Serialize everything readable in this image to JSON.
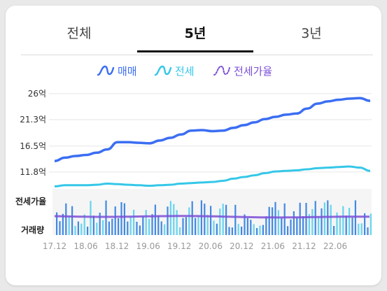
{
  "tabs": [
    {
      "label": "전체",
      "active": false
    },
    {
      "label": "5년",
      "active": true
    },
    {
      "label": "3년",
      "active": false
    }
  ],
  "legend": [
    {
      "label": "매매",
      "color": "#3b6ef2",
      "icon": "wave-icon"
    },
    {
      "label": "전세",
      "color": "#35c7e8",
      "icon": "wave-icon"
    },
    {
      "label": "전세가율",
      "color": "#7b4fd6",
      "icon": "dotted-wave-icon"
    }
  ],
  "lower_labels": {
    "jeonse_rate": "전세가율",
    "volume": "거래량"
  },
  "chart_data": {
    "type": "line",
    "title": "",
    "xlabel": "",
    "ylabel": "",
    "y_unit": "억",
    "ylim": [
      9.0,
      27.0
    ],
    "yticks": [
      "26억",
      "21.3억",
      "16.5억",
      "11.8억"
    ],
    "ytick_values": [
      26,
      21.3,
      16.5,
      11.8
    ],
    "xticks": [
      "17.12",
      "18.06",
      "18.12",
      "19.06",
      "19.12",
      "20.06",
      "20.12",
      "21.06",
      "21.12",
      "22.06"
    ],
    "xlim": [
      "2017-12",
      "2022-12"
    ],
    "grid": true,
    "series": [
      {
        "name": "매매",
        "color": "#3b6ef2",
        "x": [
          "2017-12",
          "2018-02",
          "2018-04",
          "2018-06",
          "2018-08",
          "2018-10",
          "2018-12",
          "2019-02",
          "2019-04",
          "2019-06",
          "2019-08",
          "2019-10",
          "2019-12",
          "2020-02",
          "2020-04",
          "2020-06",
          "2020-08",
          "2020-10",
          "2020-12",
          "2021-02",
          "2021-04",
          "2021-06",
          "2021-08",
          "2021-10",
          "2021-12",
          "2022-02",
          "2022-04",
          "2022-06",
          "2022-08",
          "2022-10",
          "2022-12"
        ],
        "values": [
          13.8,
          14.4,
          14.7,
          14.9,
          15.3,
          15.9,
          17.2,
          17.2,
          17.1,
          17.0,
          17.5,
          18.0,
          18.6,
          19.3,
          19.4,
          19.2,
          19.3,
          19.8,
          20.3,
          20.8,
          21.4,
          21.8,
          22.2,
          22.4,
          23.3,
          24.2,
          24.6,
          24.9,
          25.1,
          25.2,
          24.7
        ]
      },
      {
        "name": "전세",
        "color": "#35c7e8",
        "x": [
          "2017-12",
          "2018-02",
          "2018-04",
          "2018-06",
          "2018-08",
          "2018-10",
          "2018-12",
          "2019-02",
          "2019-04",
          "2019-06",
          "2019-08",
          "2019-10",
          "2019-12",
          "2020-02",
          "2020-04",
          "2020-06",
          "2020-08",
          "2020-10",
          "2020-12",
          "2021-02",
          "2021-04",
          "2021-06",
          "2021-08",
          "2021-10",
          "2021-12",
          "2022-02",
          "2022-04",
          "2022-06",
          "2022-08",
          "2022-10",
          "2022-12"
        ],
        "values": [
          9.2,
          9.4,
          9.4,
          9.4,
          9.5,
          9.7,
          9.6,
          9.5,
          9.4,
          9.3,
          9.4,
          9.5,
          9.7,
          9.8,
          9.9,
          10.0,
          10.2,
          10.6,
          10.9,
          11.2,
          11.6,
          11.9,
          12.0,
          12.1,
          12.3,
          12.5,
          12.6,
          12.7,
          12.8,
          12.6,
          12.0
        ]
      }
    ],
    "secondary": {
      "jeonse_rate_color": "#7b4fd6",
      "volume_color": "#2f7de0",
      "volume_light_color": "#59d0ee"
    }
  }
}
